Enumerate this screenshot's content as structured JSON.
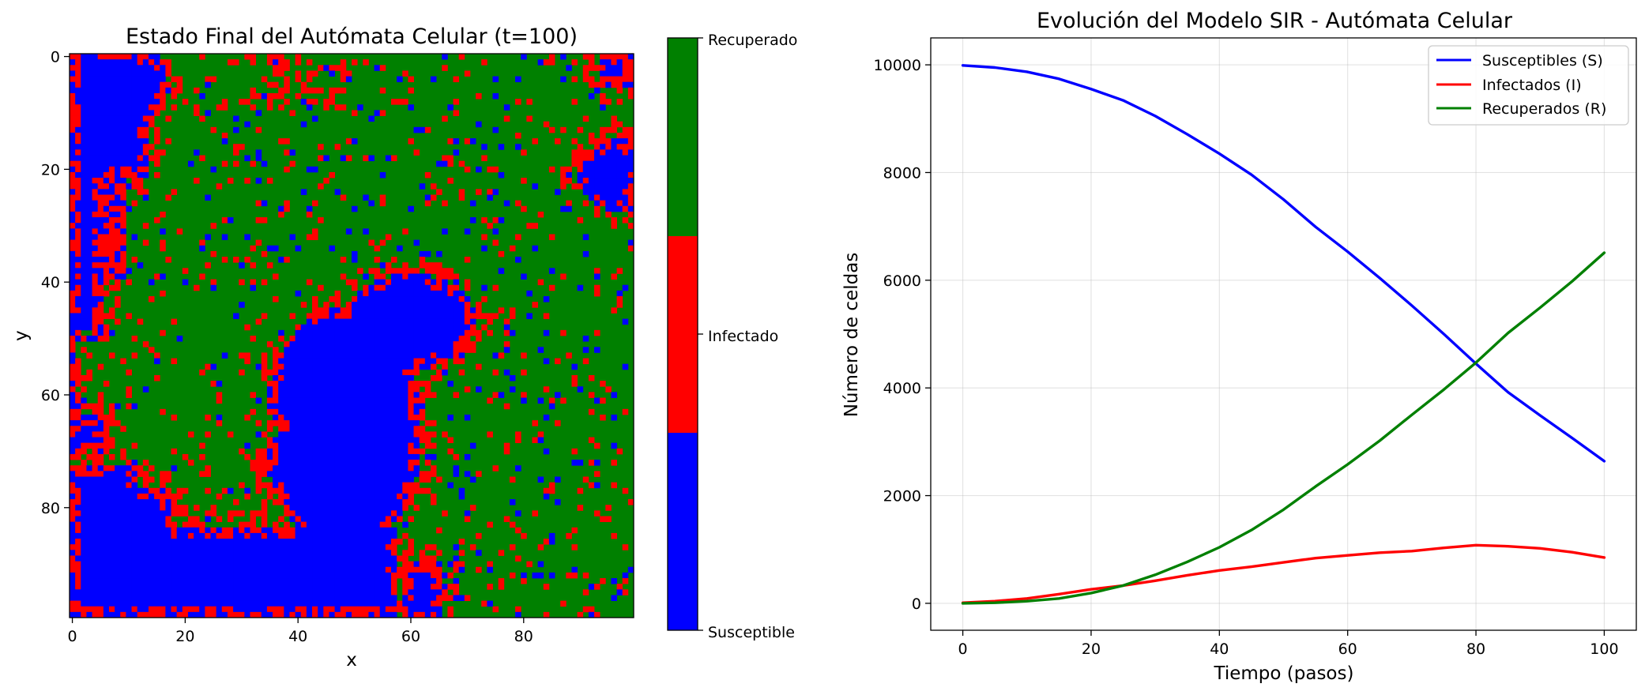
{
  "chart_data": [
    {
      "type": "heatmap",
      "title": "Estado Final del Autómata Celular (t=100)",
      "xlabel": "x",
      "ylabel": "y",
      "grid_size": [
        100,
        100
      ],
      "x_ticks": [
        0,
        20,
        40,
        60,
        80
      ],
      "y_ticks": [
        0,
        20,
        40,
        60,
        80
      ],
      "xlim": [
        0,
        99
      ],
      "ylim": [
        99,
        0
      ],
      "states": [
        "Susceptible",
        "Infectado",
        "Recuperado"
      ],
      "colors": {
        "Susceptible": "#0000ff",
        "Infectado": "#ff0000",
        "Recuperado": "#008000"
      },
      "colorbar": {
        "labels": [
          "Susceptible",
          "Infectado",
          "Recuperado"
        ]
      },
      "regions": {
        "susceptible_corners": "left edge, bottom-left, top-right, central pocket around x=40-60, y=40-60",
        "infection_fronts": "boundaries between blue and green areas"
      }
    },
    {
      "type": "line",
      "title": "Evolución del Modelo SIR - Autómata Celular",
      "xlabel": "Tiempo (pasos)",
      "ylabel": "Número de celdas",
      "xlim": [
        -5,
        105
      ],
      "ylim": [
        -500,
        10500
      ],
      "x_ticks": [
        0,
        20,
        40,
        60,
        80,
        100
      ],
      "y_ticks": [
        0,
        2000,
        4000,
        6000,
        8000,
        10000
      ],
      "grid": true,
      "legend_position": "top-right",
      "x": [
        0,
        5,
        10,
        15,
        20,
        25,
        30,
        35,
        40,
        45,
        50,
        55,
        60,
        65,
        70,
        75,
        80,
        85,
        90,
        95,
        100
      ],
      "series": [
        {
          "name": "Susceptibles (S)",
          "color": "#0000ff",
          "values": [
            9990,
            9950,
            9870,
            9740,
            9550,
            9340,
            9050,
            8710,
            8350,
            7960,
            7500,
            6990,
            6530,
            6040,
            5530,
            5000,
            4450,
            3920,
            3490,
            3070,
            2640
          ]
        },
        {
          "name": "Infectados (I)",
          "color": "#ff0000",
          "values": [
            10,
            40,
            90,
            170,
            260,
            330,
            420,
            520,
            610,
            680,
            760,
            840,
            890,
            940,
            970,
            1030,
            1080,
            1060,
            1020,
            950,
            850
          ]
        },
        {
          "name": "Recuperados (R)",
          "color": "#008000",
          "values": [
            0,
            10,
            40,
            90,
            190,
            330,
            530,
            770,
            1040,
            1360,
            1740,
            2170,
            2580,
            3020,
            3500,
            3970,
            4470,
            5020,
            5490,
            5980,
            6510
          ]
        }
      ]
    }
  ]
}
